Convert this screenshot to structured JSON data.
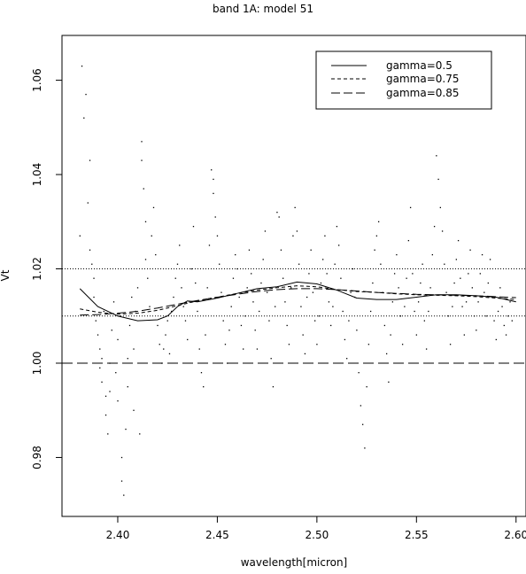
{
  "chart_data": {
    "type": "scatter",
    "title": "band 1A: model 51",
    "xlabel": "wavelength[micron]",
    "ylabel": "Vt",
    "xlim": [
      2.372,
      2.605
    ],
    "ylim": [
      0.9675,
      1.0695
    ],
    "xticks": [
      2.4,
      2.45,
      2.5,
      2.55,
      2.6
    ],
    "xtick_labels": [
      "2.40",
      "2.45",
      "2.50",
      "2.55",
      "2.60"
    ],
    "yticks": [
      0.98,
      1.0,
      1.02,
      1.04,
      1.06
    ],
    "ytick_labels": [
      "0.98",
      "1.00",
      "1.02",
      "1.04",
      "1.06"
    ],
    "grid": false,
    "legend_position": "top-right",
    "reference_lines": [
      {
        "y": 1.02,
        "style": "dotted"
      },
      {
        "y": 1.01,
        "style": "dotted"
      },
      {
        "y": 1.0,
        "style": "dashed"
      }
    ],
    "series": [
      {
        "name": "gamma=0.5",
        "style": "solid",
        "x": [
          2.381,
          2.39,
          2.4,
          2.41,
          2.42,
          2.425,
          2.43,
          2.435,
          2.44,
          2.45,
          2.46,
          2.47,
          2.48,
          2.49,
          2.5,
          2.51,
          2.52,
          2.53,
          2.54,
          2.55,
          2.56,
          2.57,
          2.58,
          2.59,
          2.6
        ],
        "y": [
          1.0158,
          1.012,
          1.01,
          1.009,
          1.0092,
          1.01,
          1.012,
          1.0132,
          1.013,
          1.0138,
          1.0148,
          1.0158,
          1.0162,
          1.0172,
          1.0168,
          1.0155,
          1.0138,
          1.0135,
          1.0135,
          1.014,
          1.0145,
          1.0145,
          1.0143,
          1.014,
          1.013
        ]
      },
      {
        "name": "gamma=0.75",
        "style": "dashed",
        "x": [
          2.381,
          2.39,
          2.4,
          2.41,
          2.42,
          2.43,
          2.44,
          2.45,
          2.46,
          2.47,
          2.48,
          2.49,
          2.5,
          2.51,
          2.52,
          2.53,
          2.54,
          2.55,
          2.56,
          2.57,
          2.58,
          2.59,
          2.6
        ],
        "y": [
          1.0115,
          1.0108,
          1.0104,
          1.0106,
          1.0112,
          1.0122,
          1.0132,
          1.014,
          1.0148,
          1.0155,
          1.016,
          1.0164,
          1.0162,
          1.0156,
          1.0152,
          1.015,
          1.0147,
          1.0145,
          1.0144,
          1.0143,
          1.0141,
          1.0138,
          1.0135
        ]
      },
      {
        "name": "gamma=0.85",
        "style": "longdash",
        "x": [
          2.381,
          2.39,
          2.4,
          2.41,
          2.42,
          2.43,
          2.44,
          2.45,
          2.46,
          2.47,
          2.48,
          2.49,
          2.5,
          2.51,
          2.52,
          2.53,
          2.54,
          2.55,
          2.56,
          2.57,
          2.58,
          2.59,
          2.6
        ],
        "y": [
          1.0102,
          1.0103,
          1.0106,
          1.011,
          1.0117,
          1.0125,
          1.0133,
          1.014,
          1.0146,
          1.0152,
          1.0156,
          1.0158,
          1.0158,
          1.0156,
          1.0153,
          1.015,
          1.0148,
          1.0146,
          1.0145,
          1.0144,
          1.0143,
          1.0141,
          1.0139
        ]
      }
    ],
    "points": [
      [
        2.381,
        1.027
      ],
      [
        2.382,
        1.063
      ],
      [
        2.383,
        1.052
      ],
      [
        2.384,
        1.057
      ],
      [
        2.385,
        1.034
      ],
      [
        2.386,
        1.043
      ],
      [
        2.386,
        1.024
      ],
      [
        2.387,
        1.021
      ],
      [
        2.388,
        1.018
      ],
      [
        2.388,
        1.014
      ],
      [
        2.389,
        1.009
      ],
      [
        2.39,
        1.006
      ],
      [
        2.391,
        1.003
      ],
      [
        2.391,
        0.999
      ],
      [
        2.392,
        0.996
      ],
      [
        2.392,
        1.001
      ],
      [
        2.393,
        1.011
      ],
      [
        2.394,
        0.993
      ],
      [
        2.394,
        0.989
      ],
      [
        2.395,
        0.985
      ],
      [
        2.396,
        0.994
      ],
      [
        2.396,
        1.0
      ],
      [
        2.397,
        1.007
      ],
      [
        2.398,
        1.013
      ],
      [
        2.399,
        0.998
      ],
      [
        2.4,
        0.992
      ],
      [
        2.4,
        1.005
      ],
      [
        2.401,
        1.01
      ],
      [
        2.402,
        0.98
      ],
      [
        2.402,
        0.975
      ],
      [
        2.403,
        0.972
      ],
      [
        2.404,
        0.986
      ],
      [
        2.405,
        0.995
      ],
      [
        2.405,
        1.001
      ],
      [
        2.406,
        1.008
      ],
      [
        2.407,
        1.014
      ],
      [
        2.408,
        0.99
      ],
      [
        2.408,
        1.003
      ],
      [
        2.409,
        1.011
      ],
      [
        2.41,
        1.016
      ],
      [
        2.411,
        0.985
      ],
      [
        2.412,
        1.047
      ],
      [
        2.412,
        1.043
      ],
      [
        2.413,
        1.037
      ],
      [
        2.414,
        1.03
      ],
      [
        2.414,
        1.022
      ],
      [
        2.415,
        1.018
      ],
      [
        2.416,
        1.012
      ],
      [
        2.417,
        1.027
      ],
      [
        2.418,
        1.033
      ],
      [
        2.419,
        1.023
      ],
      [
        2.42,
        1.008
      ],
      [
        2.421,
        1.004
      ],
      [
        2.422,
        1.0
      ],
      [
        2.423,
        1.003
      ],
      [
        2.424,
        1.006
      ],
      [
        2.425,
        1.009
      ],
      [
        2.426,
        1.002
      ],
      [
        2.427,
        1.011
      ],
      [
        2.428,
        1.014
      ],
      [
        2.429,
        1.018
      ],
      [
        2.43,
        1.021
      ],
      [
        2.431,
        1.025
      ],
      [
        2.432,
        1.016
      ],
      [
        2.433,
        1.012
      ],
      [
        2.434,
        1.009
      ],
      [
        2.435,
        1.005
      ],
      [
        2.436,
        1.013
      ],
      [
        2.437,
        1.02
      ],
      [
        2.438,
        1.029
      ],
      [
        2.439,
        1.017
      ],
      [
        2.44,
        1.011
      ],
      [
        2.441,
        1.003
      ],
      [
        2.442,
        0.998
      ],
      [
        2.443,
        0.995
      ],
      [
        2.444,
        1.006
      ],
      [
        2.445,
        1.016
      ],
      [
        2.446,
        1.025
      ],
      [
        2.447,
        1.041
      ],
      [
        2.448,
        1.039
      ],
      [
        2.448,
        1.036
      ],
      [
        2.449,
        1.031
      ],
      [
        2.45,
        1.027
      ],
      [
        2.451,
        1.021
      ],
      [
        2.452,
        1.015
      ],
      [
        2.453,
        1.009
      ],
      [
        2.454,
        1.004
      ],
      [
        2.455,
        1.0
      ],
      [
        2.456,
        1.007
      ],
      [
        2.457,
        1.012
      ],
      [
        2.458,
        1.018
      ],
      [
        2.459,
        1.023
      ],
      [
        2.46,
        1.02
      ],
      [
        2.461,
        1.014
      ],
      [
        2.462,
        1.008
      ],
      [
        2.463,
        1.003
      ],
      [
        2.464,
        1.01
      ],
      [
        2.465,
        1.016
      ],
      [
        2.466,
        1.024
      ],
      [
        2.467,
        1.019
      ],
      [
        2.468,
        1.013
      ],
      [
        2.469,
        1.007
      ],
      [
        2.47,
        1.003
      ],
      [
        2.471,
        1.011
      ],
      [
        2.472,
        1.017
      ],
      [
        2.473,
        1.022
      ],
      [
        2.474,
        1.028
      ],
      [
        2.475,
        1.015
      ],
      [
        2.476,
        1.009
      ],
      [
        2.477,
        1.001
      ],
      [
        2.478,
        0.995
      ],
      [
        2.479,
        1.012
      ],
      [
        2.48,
        1.032
      ],
      [
        2.481,
        1.031
      ],
      [
        2.482,
        1.024
      ],
      [
        2.483,
        1.018
      ],
      [
        2.484,
        1.013
      ],
      [
        2.485,
        1.008
      ],
      [
        2.486,
        1.004
      ],
      [
        2.487,
        1.016
      ],
      [
        2.488,
        1.027
      ],
      [
        2.489,
        1.033
      ],
      [
        2.49,
        1.028
      ],
      [
        2.491,
        1.021
      ],
      [
        2.492,
        1.012
      ],
      [
        2.493,
        1.006
      ],
      [
        2.494,
        1.002
      ],
      [
        2.495,
        1.014
      ],
      [
        2.496,
        1.019
      ],
      [
        2.497,
        1.024
      ],
      [
        2.498,
        1.015
      ],
      [
        2.499,
        1.009
      ],
      [
        2.5,
        1.004
      ],
      [
        2.501,
        1.01
      ],
      [
        2.502,
        1.017
      ],
      [
        2.503,
        1.022
      ],
      [
        2.504,
        1.027
      ],
      [
        2.505,
        1.019
      ],
      [
        2.506,
        1.013
      ],
      [
        2.507,
        1.008
      ],
      [
        2.508,
        1.012
      ],
      [
        2.509,
        1.021
      ],
      [
        2.51,
        1.029
      ],
      [
        2.511,
        1.025
      ],
      [
        2.512,
        1.018
      ],
      [
        2.513,
        1.011
      ],
      [
        2.514,
        1.005
      ],
      [
        2.515,
        1.001
      ],
      [
        2.516,
        1.009
      ],
      [
        2.517,
        1.015
      ],
      [
        2.518,
        1.02
      ],
      [
        2.519,
        1.014
      ],
      [
        2.52,
        1.007
      ],
      [
        2.521,
        0.998
      ],
      [
        2.522,
        0.991
      ],
      [
        2.523,
        0.987
      ],
      [
        2.524,
        0.982
      ],
      [
        2.525,
        0.995
      ],
      [
        2.526,
        1.004
      ],
      [
        2.527,
        1.011
      ],
      [
        2.528,
        1.017
      ],
      [
        2.529,
        1.024
      ],
      [
        2.53,
        1.027
      ],
      [
        2.531,
        1.03
      ],
      [
        2.532,
        1.021
      ],
      [
        2.533,
        1.015
      ],
      [
        2.534,
        1.008
      ],
      [
        2.535,
        1.002
      ],
      [
        2.536,
        0.996
      ],
      [
        2.537,
        1.006
      ],
      [
        2.538,
        1.013
      ],
      [
        2.539,
        1.019
      ],
      [
        2.54,
        1.023
      ],
      [
        2.541,
        1.016
      ],
      [
        2.542,
        1.01
      ],
      [
        2.543,
        1.004
      ],
      [
        2.544,
        1.012
      ],
      [
        2.545,
        1.018
      ],
      [
        2.546,
        1.026
      ],
      [
        2.547,
        1.033
      ],
      [
        2.548,
        1.019
      ],
      [
        2.549,
        1.011
      ],
      [
        2.55,
        1.006
      ],
      [
        2.551,
        1.013
      ],
      [
        2.552,
        1.017
      ],
      [
        2.553,
        1.021
      ],
      [
        2.554,
        1.009
      ],
      [
        2.555,
        1.003
      ],
      [
        2.556,
        1.011
      ],
      [
        2.557,
        1.016
      ],
      [
        2.558,
        1.023
      ],
      [
        2.559,
        1.029
      ],
      [
        2.56,
        1.044
      ],
      [
        2.561,
        1.039
      ],
      [
        2.562,
        1.033
      ],
      [
        2.563,
        1.028
      ],
      [
        2.564,
        1.021
      ],
      [
        2.565,
        1.015
      ],
      [
        2.566,
        1.01
      ],
      [
        2.567,
        1.004
      ],
      [
        2.568,
        1.012
      ],
      [
        2.569,
        1.017
      ],
      [
        2.57,
        1.022
      ],
      [
        2.571,
        1.026
      ],
      [
        2.572,
        1.018
      ],
      [
        2.573,
        1.012
      ],
      [
        2.574,
        1.006
      ],
      [
        2.575,
        1.013
      ],
      [
        2.576,
        1.019
      ],
      [
        2.577,
        1.024
      ],
      [
        2.578,
        1.016
      ],
      [
        2.579,
        1.01
      ],
      [
        2.58,
        1.007
      ],
      [
        2.581,
        1.013
      ],
      [
        2.582,
        1.019
      ],
      [
        2.583,
        1.023
      ],
      [
        2.584,
        1.015
      ],
      [
        2.585,
        1.01
      ],
      [
        2.586,
        1.017
      ],
      [
        2.587,
        1.022
      ],
      [
        2.588,
        1.014
      ],
      [
        2.589,
        1.009
      ],
      [
        2.59,
        1.005
      ],
      [
        2.591,
        1.011
      ],
      [
        2.592,
        1.016
      ],
      [
        2.593,
        1.012
      ],
      [
        2.594,
        1.008
      ],
      [
        2.595,
        1.006
      ],
      [
        2.596,
        1.01
      ],
      [
        2.597,
        1.013
      ],
      [
        2.598,
        1.009
      ]
    ]
  }
}
